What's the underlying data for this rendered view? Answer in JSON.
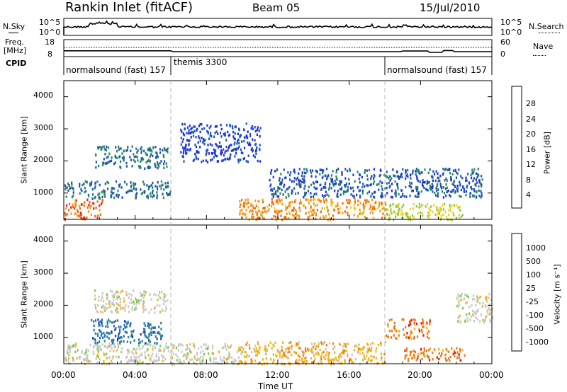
{
  "header": {
    "title": "Rankin Inlet (fitACF)",
    "beam": "Beam 05",
    "date": "15/Jul/2010"
  },
  "top_panels": {
    "nsky_label": "N.Sky",
    "nsky_ticks": [
      "10^5",
      "10^0"
    ],
    "nsearch_label": "N.Search",
    "nsearch_ticks": [
      "10^5",
      "10^0"
    ],
    "freq_label_1": "Freq.",
    "freq_label_2": "[MHz]",
    "freq_ticks": [
      "18",
      "8"
    ],
    "nave_label": "Nave",
    "nave_ticks": [
      "60",
      "0"
    ],
    "cpid_label": "CPID",
    "cpid_segments": [
      {
        "label": "normalsound (fast) 157",
        "start_hour": 0
      },
      {
        "label": "themis 3300",
        "start_hour": 6
      },
      {
        "label": "normalsound (fast) 157",
        "start_hour": 18
      }
    ]
  },
  "axes": {
    "slant_range_label": "Slant Range [km]",
    "range_ticks": [
      "1000",
      "2000",
      "3000",
      "4000"
    ],
    "time_ticks": [
      "00:00",
      "04:00",
      "08:00",
      "12:00",
      "16:00",
      "20:00",
      "00:00"
    ],
    "time_label": "Time UT"
  },
  "colorbars": {
    "power": {
      "label": "Power [dB]",
      "ticks": [
        "4",
        "8",
        "12",
        "16",
        "20",
        "24",
        "28"
      ],
      "colors": [
        "#1f2ee0",
        "#1e56b8",
        "#2f8a5a",
        "#8cc63e",
        "#f2d21a",
        "#f59b1a",
        "#f06a10",
        "#e8140c"
      ]
    },
    "velocity": {
      "label": "Velocity [m s⁻¹]",
      "ticks": [
        "1000",
        "500",
        "100",
        "25",
        "-25",
        "-100",
        "-500",
        "-1000"
      ],
      "colors": [
        "#1f3ea8",
        "#2a72b0",
        "#2e8a6a",
        "#79c94a",
        "#c8c8c8",
        "#f2b21a",
        "#f07a10",
        "#e8140c"
      ]
    }
  },
  "chart_data": [
    {
      "type": "line",
      "title": "N.Sky / N.Search",
      "x_range_hours": [
        0,
        24
      ],
      "ylim": [
        "10^0",
        "10^5"
      ]
    },
    {
      "type": "line",
      "title": "Freq. / Nave",
      "x_range_hours": [
        0,
        24
      ],
      "freq_ylim": [
        8,
        18
      ],
      "nave_ylim": [
        0,
        60
      ],
      "freq_mhz": [
        [
          0,
          11.4
        ],
        [
          6,
          11.4
        ],
        [
          6.1,
          10.9
        ],
        [
          18,
          10.9
        ],
        [
          18.9,
          10.9
        ],
        [
          19,
          11.3
        ],
        [
          20.4,
          11.3
        ],
        [
          20.5,
          10.5
        ],
        [
          21.2,
          10.5
        ],
        [
          21.3,
          11.6
        ],
        [
          21.8,
          11.6
        ],
        [
          21.9,
          10.9
        ],
        [
          24,
          10.9
        ]
      ]
    },
    {
      "type": "heatmap",
      "title": "Power [dB]",
      "x": "Time UT (hours)",
      "ylabel": "Slant Range [km]",
      "x_range_hours": [
        0,
        24
      ],
      "ylim_km": [
        180,
        4500
      ],
      "regions": [
        {
          "t": [
            0,
            2.2
          ],
          "r": [
            200,
            850
          ],
          "db": 28
        },
        {
          "t": [
            0,
            6
          ],
          "r": [
            850,
            1400
          ],
          "db": 10
        },
        {
          "t": [
            1.7,
            5.8
          ],
          "r": [
            1800,
            2500
          ],
          "db": 10
        },
        {
          "t": [
            9.8,
            18
          ],
          "r": [
            200,
            850
          ],
          "db": 25
        },
        {
          "t": [
            18,
            22.5
          ],
          "r": [
            200,
            700
          ],
          "db": 18
        },
        {
          "t": [
            6.5,
            11
          ],
          "r": [
            2000,
            3200
          ],
          "db": 6
        },
        {
          "t": [
            11.5,
            23.5
          ],
          "r": [
            900,
            1800
          ],
          "db": 8
        }
      ]
    },
    {
      "type": "heatmap",
      "title": "Velocity [m s⁻¹]",
      "x": "Time UT (hours)",
      "ylabel": "Slant Range [km]",
      "x_range_hours": [
        0,
        24
      ],
      "ylim_km": [
        180,
        4500
      ],
      "regions": [
        {
          "t": [
            0,
            10
          ],
          "r": [
            200,
            850
          ],
          "v": 0
        },
        {
          "t": [
            1.5,
            5.5
          ],
          "r": [
            850,
            1600
          ],
          "v": 500
        },
        {
          "t": [
            1.7,
            5.8
          ],
          "r": [
            1800,
            2500
          ],
          "v": 0
        },
        {
          "t": [
            10,
            18
          ],
          "r": [
            200,
            900
          ],
          "v": -150
        },
        {
          "t": [
            18,
            20.5
          ],
          "r": [
            1000,
            1600
          ],
          "v": -700
        },
        {
          "t": [
            19,
            22.5
          ],
          "r": [
            300,
            700
          ],
          "v": -300
        },
        {
          "t": [
            22,
            24
          ],
          "r": [
            1500,
            2400
          ],
          "v": 0
        }
      ]
    }
  ]
}
